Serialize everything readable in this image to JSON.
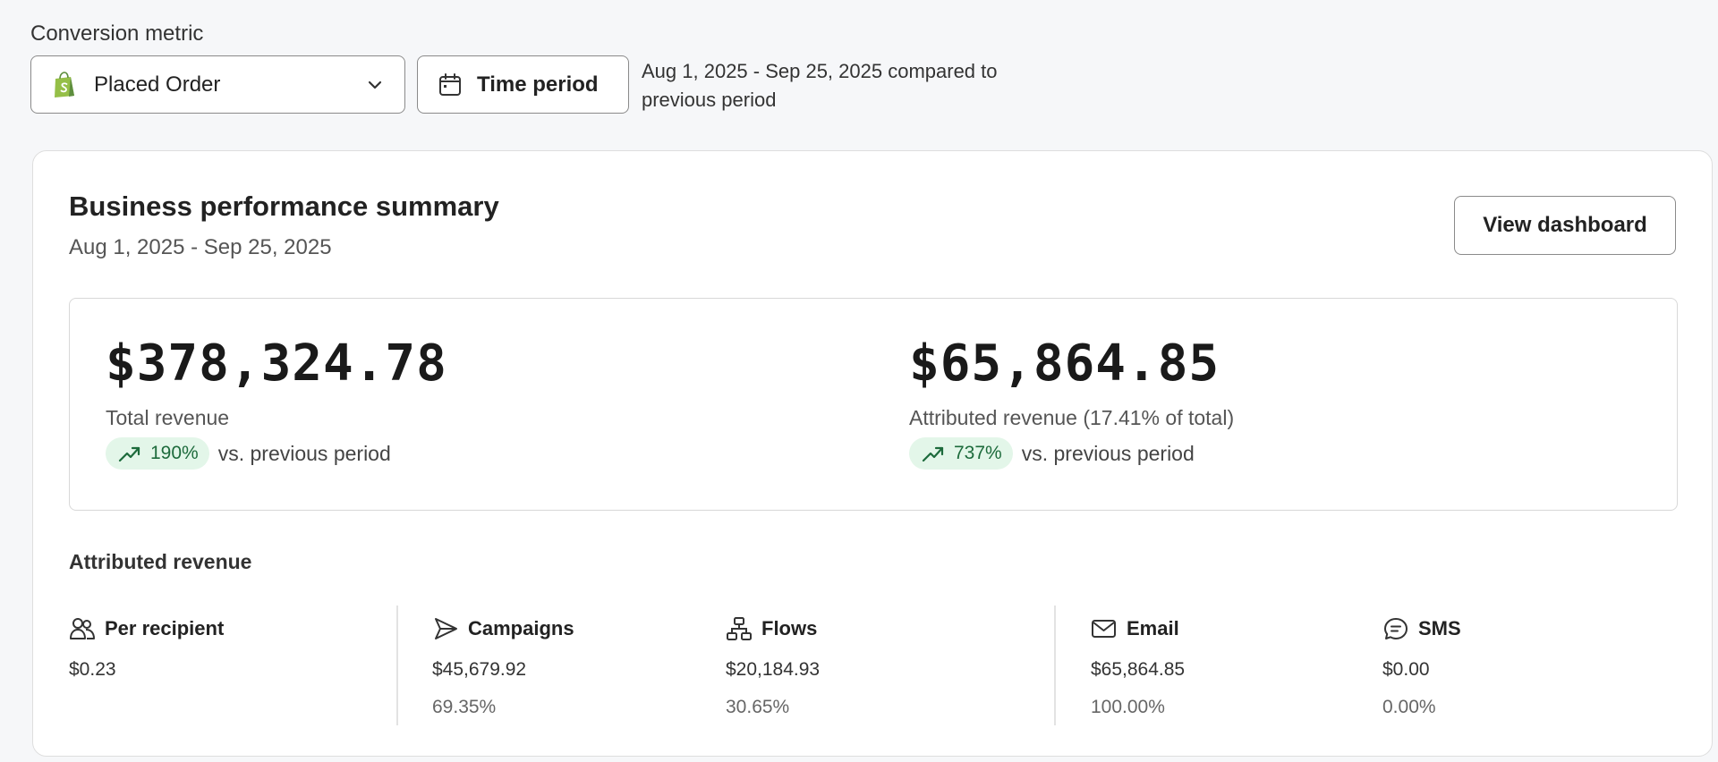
{
  "filters": {
    "metric_label": "Conversion metric",
    "metric_value": "Placed Order",
    "time_period_label": "Time period",
    "period_description": "Aug 1, 2025 - Sep 25, 2025 compared to previous period"
  },
  "summary": {
    "title": "Business performance summary",
    "date_range": "Aug 1, 2025 - Sep 25, 2025",
    "view_dashboard_label": "View dashboard",
    "total": {
      "amount": "$378,324.78",
      "label": "Total revenue",
      "change": "190%",
      "comparison": "vs. previous period"
    },
    "attributed": {
      "amount": "$65,864.85",
      "label": "Attributed revenue (17.41% of total)",
      "change": "737%",
      "comparison": "vs. previous period"
    }
  },
  "attributed_revenue": {
    "heading": "Attributed revenue",
    "items": [
      {
        "label": "Per recipient",
        "icon": "people-icon",
        "value": "$0.23",
        "percent": ""
      },
      {
        "label": "Campaigns",
        "icon": "send-icon",
        "value": "$45,679.92",
        "percent": "69.35%"
      },
      {
        "label": "Flows",
        "icon": "flow-icon",
        "value": "$20,184.93",
        "percent": "30.65%"
      },
      {
        "label": "Email",
        "icon": "mail-icon",
        "value": "$65,864.85",
        "percent": "100.00%"
      },
      {
        "label": "SMS",
        "icon": "sms-icon",
        "value": "$0.00",
        "percent": "0.00%"
      }
    ]
  },
  "colors": {
    "positive_bg": "#e3f6e9",
    "positive_text": "#1d6b3c",
    "shopify_green": "#95bf47"
  }
}
